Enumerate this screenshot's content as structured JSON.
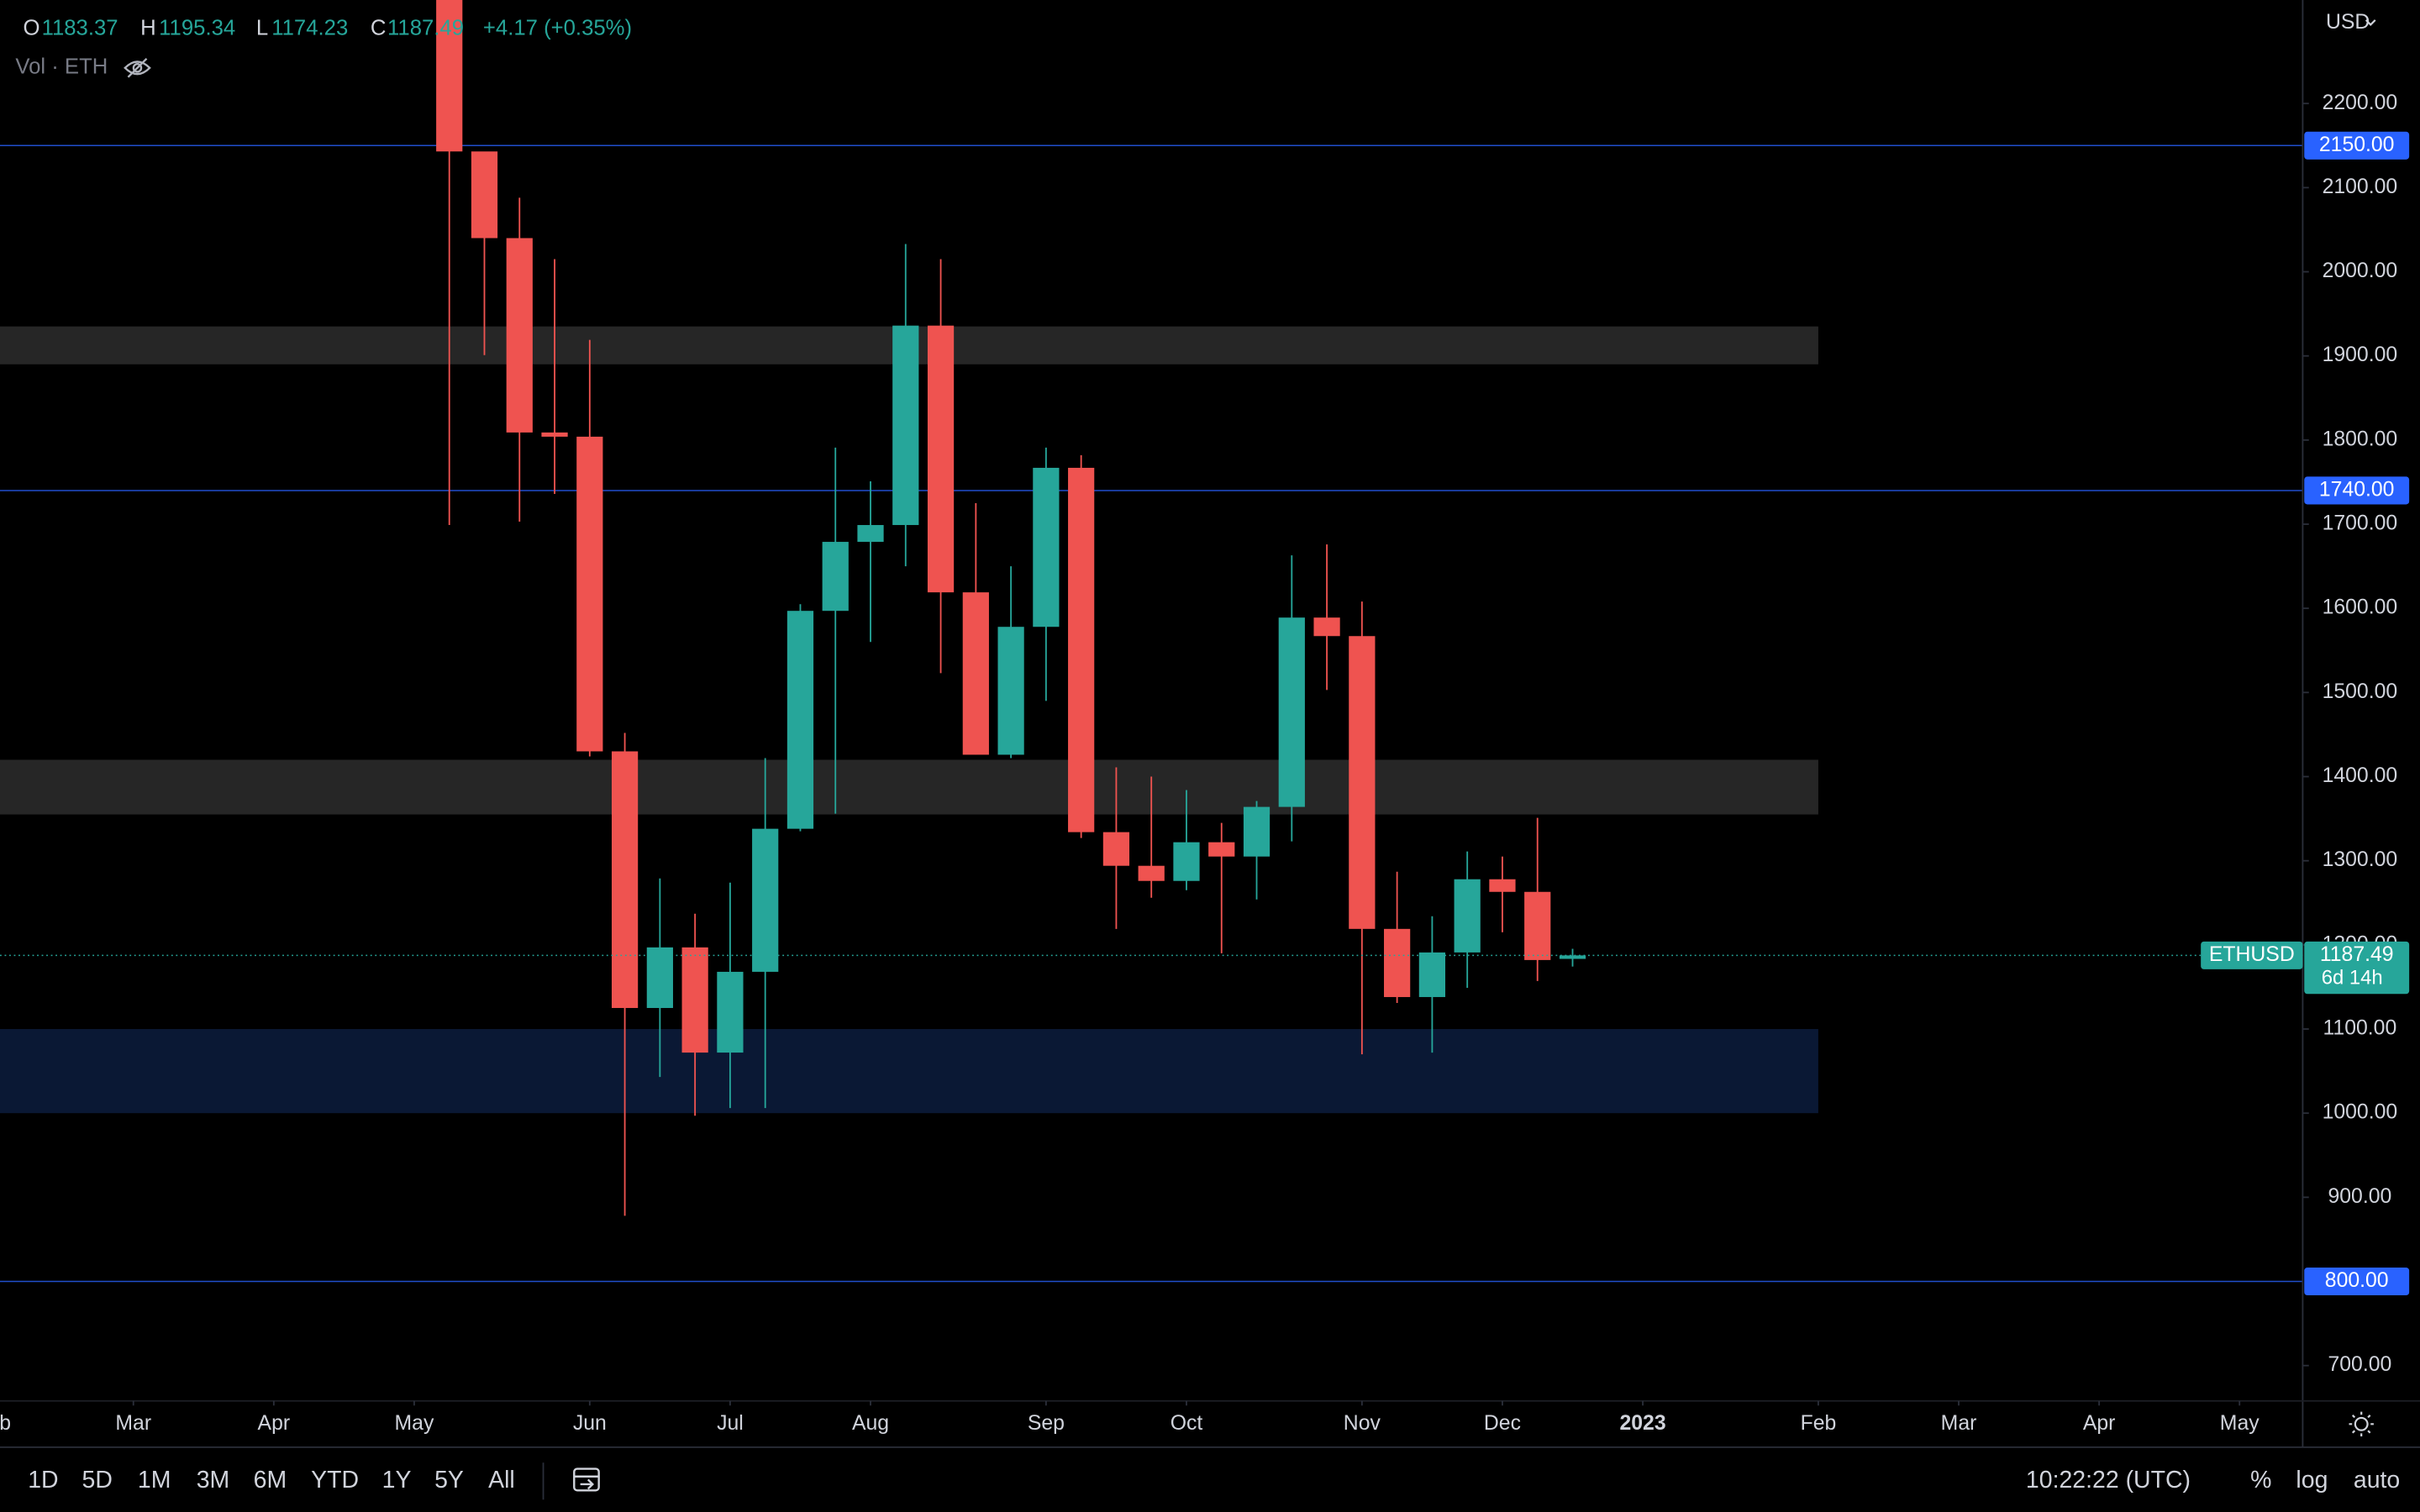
{
  "chart_data": {
    "type": "candlestick",
    "symbol": "ETHUSD",
    "currency": "USD",
    "indicator": "Vol · ETH",
    "ohlc_labels": [
      "O",
      "H",
      "L",
      "C"
    ],
    "change": "+4.17 (+0.35%)",
    "countdown": "6d 14h",
    "x": [
      0,
      1,
      2,
      3,
      4,
      5,
      6,
      7,
      8,
      9,
      10,
      11,
      12,
      13,
      14,
      15,
      16,
      17,
      18,
      19,
      20,
      21,
      22,
      23,
      24,
      25,
      26,
      27,
      28,
      29,
      30,
      31,
      32
    ],
    "open": [
      2390,
      2143,
      2040,
      1809,
      1804,
      1430,
      1125,
      1197,
      1072,
      1168,
      1338,
      1597,
      1679,
      1699,
      1936,
      1619,
      1426,
      1578,
      1767,
      1334,
      1294,
      1276,
      1322,
      1305,
      1364,
      1589,
      1567,
      1219,
      1138,
      1191,
      1278,
      1263,
      1183.37
    ],
    "high": [
      2450,
      2139,
      2088,
      2015,
      1919,
      1452,
      1279,
      1237,
      1274,
      1422,
      1605,
      1791,
      1751,
      2033,
      2015,
      1725,
      1650,
      1791,
      1782,
      1411,
      1400,
      1384,
      1345,
      1371,
      1663,
      1676,
      1608,
      1287,
      1234,
      1311,
      1305,
      1351,
      1195.34
    ],
    "low": [
      1699,
      1901,
      1703,
      1736,
      1424,
      878,
      1043,
      997,
      1006,
      1006,
      1335,
      1356,
      1560,
      1650,
      1523,
      1426,
      1422,
      1490,
      1327,
      1219,
      1256,
      1265,
      1190,
      1254,
      1323,
      1503,
      1070,
      1131,
      1072,
      1149,
      1215,
      1157,
      1174.23
    ],
    "close": [
      2143,
      2040,
      1809,
      1804,
      1430,
      1125,
      1197,
      1072,
      1168,
      1338,
      1597,
      1679,
      1699,
      1936,
      1619,
      1426,
      1578,
      1767,
      1334,
      1294,
      1276,
      1322,
      1305,
      1364,
      1589,
      1567,
      1219,
      1138,
      1191,
      1278,
      1263,
      1182,
      1187.49
    ],
    "up_color": "#26a69a",
    "down_color": "#ef5350",
    "xlim": [
      -12.8,
      52.8
    ],
    "xticks": [
      {
        "value": -13,
        "label": "Feb"
      },
      {
        "value": -9,
        "label": "Mar"
      },
      {
        "value": -5,
        "label": "Apr"
      },
      {
        "value": -1,
        "label": "May"
      },
      {
        "value": 4,
        "label": "Jun"
      },
      {
        "value": 8,
        "label": "Jul"
      },
      {
        "value": 12,
        "label": "Aug"
      },
      {
        "value": 17,
        "label": "Sep"
      },
      {
        "value": 21,
        "label": "Oct"
      },
      {
        "value": 26,
        "label": "Nov"
      },
      {
        "value": 30,
        "label": "Dec"
      },
      {
        "value": 34,
        "label": "2023"
      },
      {
        "value": 39,
        "label": "Feb"
      },
      {
        "value": 43,
        "label": "Mar"
      },
      {
        "value": 47,
        "label": "Apr"
      },
      {
        "value": 51,
        "label": "May"
      }
    ],
    "ylim": [
      658,
      2323
    ],
    "yticks": [
      {
        "value": 700,
        "label": "700.00"
      },
      {
        "value": 900,
        "label": "900.00"
      },
      {
        "value": 1000,
        "label": "1000.00"
      },
      {
        "value": 1100,
        "label": "1100.00"
      },
      {
        "value": 1200,
        "label": "1200.00"
      },
      {
        "value": 1300,
        "label": "1300.00"
      },
      {
        "value": 1400,
        "label": "1400.00"
      },
      {
        "value": 1500,
        "label": "1500.00"
      },
      {
        "value": 1600,
        "label": "1600.00"
      },
      {
        "value": 1700,
        "label": "1700.00"
      },
      {
        "value": 1800,
        "label": "1800.00"
      },
      {
        "value": 1900,
        "label": "1900.00"
      },
      {
        "value": 2000,
        "label": "2000.00"
      },
      {
        "value": 2100,
        "label": "2100.00"
      },
      {
        "value": 2200,
        "label": "2200.00"
      }
    ],
    "levels": [
      {
        "value": 2150,
        "label": "2150.00"
      },
      {
        "value": 1740,
        "label": "1740.00"
      },
      {
        "value": 800,
        "label": "800.00"
      }
    ],
    "level_color": "#2962ff",
    "zones": [
      {
        "from": 1890,
        "to": 1935,
        "end": 39,
        "color": "#262626"
      },
      {
        "from": 1355,
        "to": 1420,
        "end": 39,
        "color": "#262626"
      },
      {
        "from": 1000,
        "to": 1100,
        "end": 39,
        "color": "#0a1834"
      }
    ]
  },
  "ui": {
    "intervals": [
      "1D",
      "5D",
      "1M",
      "3M",
      "6M",
      "YTD",
      "1Y",
      "5Y",
      "All"
    ],
    "time": "10:22:22 (UTC)",
    "options": [
      "%",
      "log",
      "auto"
    ]
  }
}
